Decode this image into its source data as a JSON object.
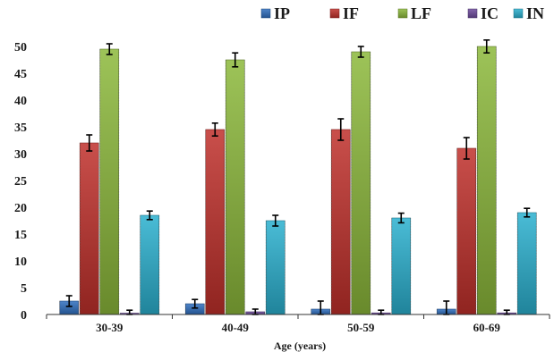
{
  "chart_data": {
    "type": "bar",
    "title": "",
    "xlabel": "Age (years)",
    "ylabel": "",
    "ylim": [
      0,
      55
    ],
    "yticks": [
      0,
      5,
      10,
      15,
      20,
      25,
      30,
      35,
      40,
      45,
      50
    ],
    "grid": false,
    "legend_position": "top",
    "categories": [
      "30-39",
      "40-49",
      "50-59",
      "60-69"
    ],
    "series": [
      {
        "name": "IP",
        "color": "#2f6ebf",
        "values": [
          2.5,
          2.0,
          1.0,
          1.0
        ],
        "errors": [
          1.0,
          0.8,
          1.5,
          1.5
        ]
      },
      {
        "name": "IF",
        "color": "#c0302b",
        "values": [
          32.0,
          34.5,
          34.5,
          31.0
        ],
        "errors": [
          1.5,
          1.2,
          2.0,
          2.0
        ]
      },
      {
        "name": "LF",
        "color": "#8cb83a",
        "values": [
          49.5,
          47.5,
          49.0,
          50.0
        ],
        "errors": [
          1.0,
          1.3,
          1.0,
          1.2
        ]
      },
      {
        "name": "IC",
        "color": "#6d4a9c",
        "values": [
          0.2,
          0.5,
          0.3,
          0.3
        ],
        "errors": [
          0.6,
          0.5,
          0.5,
          0.5
        ]
      },
      {
        "name": "IN",
        "color": "#2ab0cf",
        "values": [
          18.5,
          17.5,
          18.0,
          19.0
        ],
        "errors": [
          0.8,
          1.0,
          0.9,
          0.8
        ]
      }
    ]
  }
}
